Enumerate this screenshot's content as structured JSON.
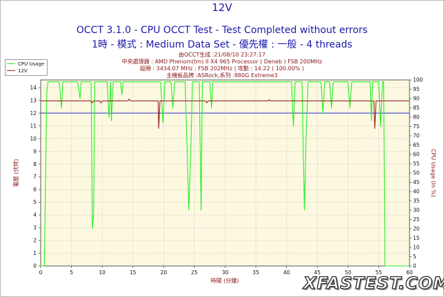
{
  "chart_data": {
    "type": "line",
    "title": "12V",
    "subtitle_lines": [
      "OCCT 3.1.0 - CPU OCCT Test - Test Completed without errors",
      "1時 - 模式 : Medium Data Set - 優先權 : 一般 - 4 threads"
    ],
    "info_lines": [
      "由OCCT生成 :21/08/10 23:27:17",
      "中央處理器 : AMD Phenom(tm) II X4 965 Processor ( Deneb ) FSB 200MHz",
      "超頻 : 3434.07 MHz ; FSB 202MHz | 攻動 : 14.22 ( 100.00% )",
      "主機板品牌 :ASRock,系列 :880G Extreme3"
    ],
    "xlabel": "時間 (分鐘)",
    "ylabel_left": "電壓 (伏特)",
    "ylabel_right": "CPU Usage (in %)",
    "x_ticks": [
      "0",
      "5",
      "10",
      "15",
      "20",
      "25",
      "30",
      "35",
      "40",
      "45",
      "50",
      "55",
      "60"
    ],
    "y_left_ticks": [
      "0",
      "1",
      "2",
      "3",
      "4",
      "5",
      "6",
      "7",
      "8",
      "9",
      "10",
      "11",
      "12",
      "13",
      "14"
    ],
    "y_right_ticks": [
      "0",
      "5",
      "10",
      "15",
      "20",
      "25",
      "30",
      "35",
      "40",
      "45",
      "50",
      "55",
      "60",
      "65",
      "70",
      "75",
      "80",
      "85",
      "90",
      "95",
      "100"
    ],
    "xlim": [
      0,
      60
    ],
    "ylim_left": [
      0,
      14.6
    ],
    "ylim_right": [
      0,
      100
    ],
    "reference_line_left": 12.0,
    "legend": [
      {
        "name": "CPU Usage",
        "color": "#22ee22"
      },
      {
        "name": "12V",
        "color": "#9a1f1f"
      }
    ],
    "series": [
      {
        "name": "CPU Usage",
        "axis": "right",
        "color": "#22ee22",
        "x": [
          0,
          0.6,
          0.9,
          1.0,
          1.2,
          3,
          3.4,
          3.6,
          6,
          6.4,
          6.6,
          8.2,
          8.4,
          8.6,
          8.8,
          9,
          10.8,
          11.1,
          11.4,
          11.5,
          11.8,
          13,
          13.2,
          13.4,
          19.5,
          19.9,
          20.2,
          21.2,
          21.5,
          21.8,
          23.5,
          24.1,
          24.4,
          24.7,
          25.8,
          26.1,
          26.3,
          27.5,
          27.8,
          28,
          40.8,
          41.1,
          41.4,
          42.5,
          42.9,
          43.2,
          43.5,
          45.6,
          45.9,
          46.2,
          47,
          47.3,
          47.6,
          50,
          50.3,
          50.6,
          53.6,
          53.8,
          54,
          55,
          55.3,
          55.6,
          55.8,
          56,
          56.3,
          57,
          60
        ],
        "values": [
          0,
          0,
          70,
          94,
          99,
          99,
          85,
          99,
          99,
          90,
          99,
          99,
          20,
          28,
          99,
          99,
          99,
          80,
          99,
          78,
          99,
          99,
          92,
          99,
          99,
          77,
          99,
          99,
          85,
          99,
          99,
          30,
          60,
          99,
          99,
          30,
          99,
          99,
          85,
          99,
          99,
          75,
          99,
          99,
          30,
          72,
          99,
          99,
          82,
          99,
          99,
          85,
          99,
          99,
          85,
          99,
          99,
          78,
          99,
          99,
          75,
          99,
          99,
          0,
          0,
          0,
          0
        ]
      },
      {
        "name": "12V",
        "axis": "left",
        "color": "#9a1f1f",
        "x": [
          0,
          8.2,
          8.4,
          8.6,
          9.6,
          9.8,
          10,
          14.2,
          14.4,
          14.6,
          19.1,
          19.2,
          19.4,
          19.6,
          26.8,
          27,
          27.2,
          37,
          37.2,
          37.4,
          54.2,
          54.35,
          54.55,
          54.7,
          60
        ],
        "values": [
          12.95,
          12.95,
          12.8,
          12.95,
          12.95,
          12.8,
          12.95,
          12.95,
          13.1,
          12.95,
          12.95,
          10.8,
          12.95,
          12.95,
          12.95,
          12.8,
          12.95,
          12.95,
          13.05,
          12.95,
          12.95,
          10.8,
          12.95,
          12.95,
          12.95
        ]
      }
    ]
  },
  "watermark": "XFASTEST.COM"
}
